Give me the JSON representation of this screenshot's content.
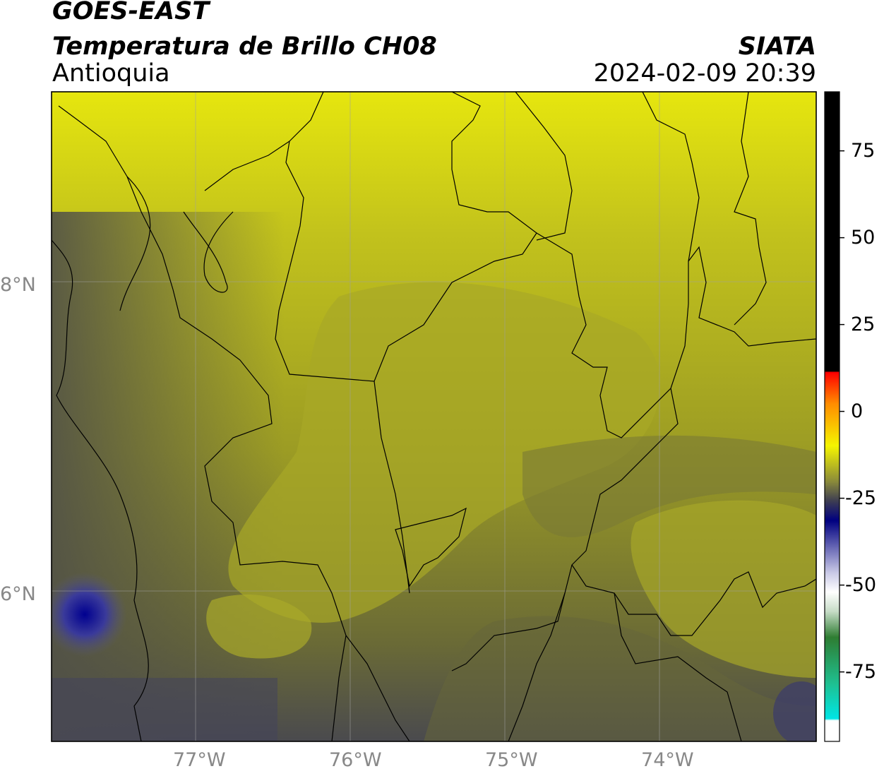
{
  "header": {
    "satellite": "GOES-EAST",
    "product": "Temperatura de Brillo CH08",
    "region": "Antioquia",
    "brand": "SIATA",
    "datetime": "2024-02-09 20:39"
  },
  "map": {
    "lat_ticks": [
      {
        "value": 8,
        "label": "8°N"
      },
      {
        "value": 6,
        "label": "6°N"
      }
    ],
    "lon_ticks": [
      {
        "value": -77,
        "label": "77°W"
      },
      {
        "value": -76,
        "label": "76°W"
      },
      {
        "value": -75,
        "label": "75°W"
      },
      {
        "value": -74,
        "label": "74°W"
      }
    ],
    "extent": {
      "lon_min": -77.95,
      "lon_max": -73.05,
      "lat_min": 5.05,
      "lat_max": 9.25
    }
  },
  "colorbar": {
    "range": [
      -95,
      92
    ],
    "ticks": [
      {
        "value": 75,
        "label": "75"
      },
      {
        "value": 50,
        "label": "50"
      },
      {
        "value": 25,
        "label": "25"
      },
      {
        "value": 0,
        "label": "0"
      },
      {
        "value": -25,
        "label": "-25"
      },
      {
        "value": -50,
        "label": "-50"
      },
      {
        "value": -75,
        "label": "-75"
      }
    ],
    "colors": {
      "black": "#000000",
      "red": "#ff0000",
      "orange": "#ff8c00",
      "yellow": "#f5f500",
      "olive": "#6f6f2e",
      "gray": "#3d3d52",
      "navy": "#000080",
      "white": "#ffffff",
      "green": "#2e7d32",
      "cyan": "#00e5e5"
    }
  }
}
